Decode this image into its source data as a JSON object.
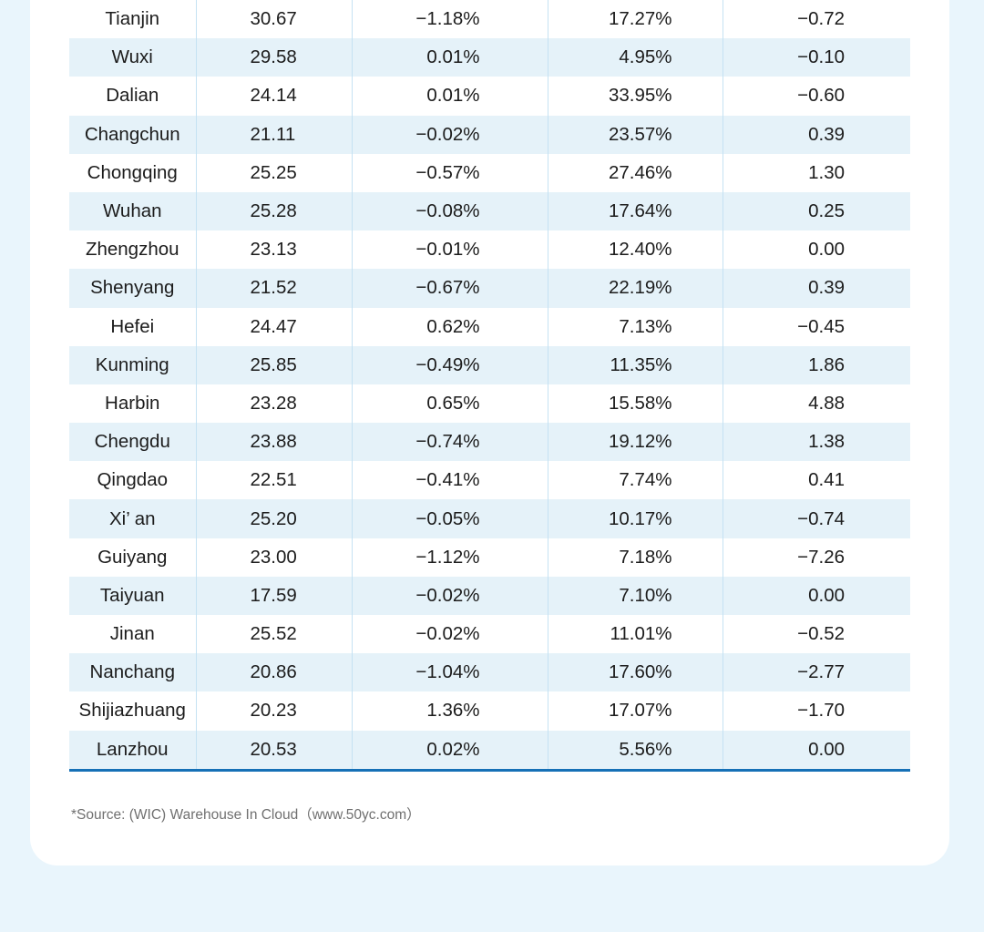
{
  "table": {
    "rows": [
      {
        "city": "Tianjin",
        "price": "30.67",
        "mom": "−1.18%",
        "vacancy": "17.27%",
        "vacancy_change": "−0.72"
      },
      {
        "city": "Wuxi",
        "price": "29.58",
        "mom": "0.01%",
        "vacancy": "4.95%",
        "vacancy_change": "−0.10"
      },
      {
        "city": "Dalian",
        "price": "24.14",
        "mom": "0.01%",
        "vacancy": "33.95%",
        "vacancy_change": "−0.60"
      },
      {
        "city": "Changchun",
        "price": "21.11",
        "mom": "−0.02%",
        "vacancy": "23.57%",
        "vacancy_change": "0.39"
      },
      {
        "city": "Chongqing",
        "price": "25.25",
        "mom": "−0.57%",
        "vacancy": "27.46%",
        "vacancy_change": "1.30"
      },
      {
        "city": "Wuhan",
        "price": "25.28",
        "mom": "−0.08%",
        "vacancy": "17.64%",
        "vacancy_change": "0.25"
      },
      {
        "city": "Zhengzhou",
        "price": "23.13",
        "mom": "−0.01%",
        "vacancy": "12.40%",
        "vacancy_change": "0.00"
      },
      {
        "city": "Shenyang",
        "price": "21.52",
        "mom": "−0.67%",
        "vacancy": "22.19%",
        "vacancy_change": "0.39"
      },
      {
        "city": "Hefei",
        "price": "24.47",
        "mom": "0.62%",
        "vacancy": "7.13%",
        "vacancy_change": "−0.45"
      },
      {
        "city": "Kunming",
        "price": "25.85",
        "mom": "−0.49%",
        "vacancy": "11.35%",
        "vacancy_change": "1.86"
      },
      {
        "city": "Harbin",
        "price": "23.28",
        "mom": "0.65%",
        "vacancy": "15.58%",
        "vacancy_change": "4.88"
      },
      {
        "city": "Chengdu",
        "price": "23.88",
        "mom": "−0.74%",
        "vacancy": "19.12%",
        "vacancy_change": "1.38"
      },
      {
        "city": "Qingdao",
        "price": "22.51",
        "mom": "−0.41%",
        "vacancy": "7.74%",
        "vacancy_change": "0.41"
      },
      {
        "city": "Xi’ an",
        "price": "25.20",
        "mom": "−0.05%",
        "vacancy": "10.17%",
        "vacancy_change": "−0.74"
      },
      {
        "city": "Guiyang",
        "price": "23.00",
        "mom": "−1.12%",
        "vacancy": "7.18%",
        "vacancy_change": "−7.26"
      },
      {
        "city": "Taiyuan",
        "price": "17.59",
        "mom": "−0.02%",
        "vacancy": "7.10%",
        "vacancy_change": "0.00"
      },
      {
        "city": "Jinan",
        "price": "25.52",
        "mom": "−0.02%",
        "vacancy": "11.01%",
        "vacancy_change": "−0.52"
      },
      {
        "city": "Nanchang",
        "price": "20.86",
        "mom": "−1.04%",
        "vacancy": "17.60%",
        "vacancy_change": "−2.77"
      },
      {
        "city": "Shijiazhuang",
        "price": "20.23",
        "mom": "1.36%",
        "vacancy": "17.07%",
        "vacancy_change": "−1.70"
      },
      {
        "city": "Lanzhou",
        "price": "20.53",
        "mom": "0.02%",
        "vacancy": "5.56%",
        "vacancy_change": "0.00"
      }
    ]
  },
  "footer": {
    "source": "*Source: (WIC) Warehouse In Cloud（www.50yc.com）"
  },
  "colors": {
    "page_background": "#e9f5fc",
    "card_background": "#ffffff",
    "row_alt_background": "#e5f2f9",
    "rule": "#1570b6"
  }
}
